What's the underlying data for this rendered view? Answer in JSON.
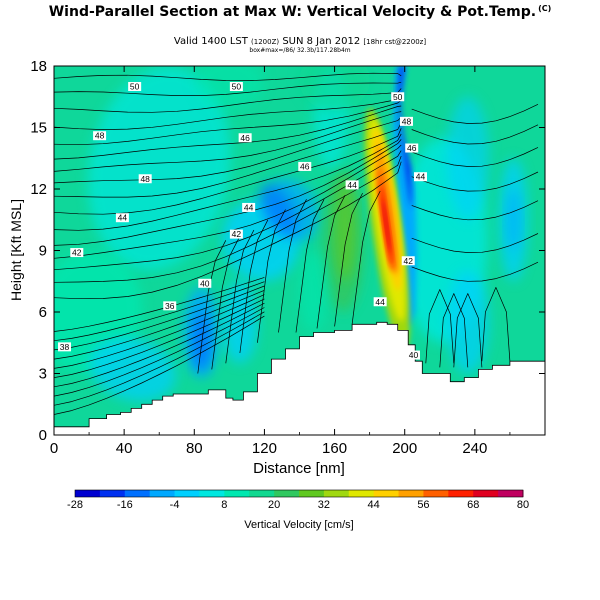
{
  "header": {
    "title": "Wind-Parallel Section at Max W: Vertical Velocity & Pot.Temp.",
    "copyright": "(C)",
    "valid_line": "Valid 1400 LST",
    "valid_small": "(1200Z)",
    "date_line": "SUN 8 Jan 2012",
    "model_small": "[18hr cst@2200z]",
    "sub_line": "box#max=/86/ 32.3b/117.28b4m"
  },
  "chart_data": {
    "type": "heatmap",
    "xlabel": "Distance [nm]",
    "ylabel": "Height [Kft MSL]",
    "xlim": [
      0,
      280
    ],
    "ylim": [
      0,
      18
    ],
    "xticks": [
      "0",
      "40",
      "80",
      "120",
      "160",
      "200",
      "240"
    ],
    "yticks": [
      "0",
      "3",
      "6",
      "9",
      "12",
      "15",
      "18"
    ],
    "colorbar": {
      "label": "Vertical Velocity [cm/s]",
      "ticks": [
        "-28",
        "-16",
        "-4",
        "8",
        "20",
        "32",
        "44",
        "56",
        "68",
        "80"
      ],
      "colors": [
        "#0000d0",
        "#0030f0",
        "#0070ff",
        "#00a8ff",
        "#00d0ff",
        "#00e8e0",
        "#00e8b0",
        "#10d890",
        "#30c860",
        "#60c820",
        "#a0d810",
        "#e0e800",
        "#ffd000",
        "#ffa000",
        "#ff6000",
        "#ff2000",
        "#e00020",
        "#c00060"
      ]
    },
    "contour_labels": [
      {
        "label": "50",
        "x": 46,
        "y": 17.0
      },
      {
        "label": "50",
        "x": 104,
        "y": 17.0
      },
      {
        "label": "48",
        "x": 26,
        "y": 14.6
      },
      {
        "label": "46",
        "x": 109,
        "y": 14.5
      },
      {
        "label": "48",
        "x": 52,
        "y": 12.5
      },
      {
        "label": "46",
        "x": 143,
        "y": 13.1
      },
      {
        "label": "44",
        "x": 170,
        "y": 12.2
      },
      {
        "label": "44",
        "x": 39,
        "y": 10.6
      },
      {
        "label": "44",
        "x": 111,
        "y": 11.1
      },
      {
        "label": "42",
        "x": 13,
        "y": 8.9
      },
      {
        "label": "42",
        "x": 104,
        "y": 9.8
      },
      {
        "label": "40",
        "x": 86,
        "y": 7.4
      },
      {
        "label": "36",
        "x": 66,
        "y": 6.3
      },
      {
        "label": "38",
        "x": 6,
        "y": 4.3
      },
      {
        "label": "50",
        "x": 196,
        "y": 16.5
      },
      {
        "label": "48",
        "x": 201,
        "y": 15.3
      },
      {
        "label": "46",
        "x": 204,
        "y": 14.0
      },
      {
        "label": "44",
        "x": 209,
        "y": 12.6
      },
      {
        "label": "42",
        "x": 202,
        "y": 8.5
      },
      {
        "label": "44",
        "x": 186,
        "y": 6.5
      },
      {
        "label": "40",
        "x": 205,
        "y": 3.9
      }
    ],
    "terrain_top_kft": [
      [
        0,
        0.4
      ],
      [
        20,
        0.8
      ],
      [
        30,
        1.0
      ],
      [
        38,
        1.1
      ],
      [
        44,
        1.3
      ],
      [
        50,
        1.5
      ],
      [
        56,
        1.7
      ],
      [
        62,
        1.9
      ],
      [
        68,
        2.0
      ],
      [
        76,
        2.0
      ],
      [
        88,
        2.2
      ],
      [
        98,
        1.8
      ],
      [
        102,
        1.7
      ],
      [
        108,
        2.1
      ],
      [
        116,
        3.0
      ],
      [
        124,
        3.7
      ],
      [
        132,
        4.2
      ],
      [
        140,
        4.8
      ],
      [
        148,
        5.0
      ],
      [
        160,
        5.1
      ],
      [
        170,
        5.4
      ],
      [
        178,
        5.4
      ],
      [
        184,
        5.5
      ],
      [
        190,
        5.4
      ],
      [
        196,
        5.1
      ],
      [
        202,
        4.4
      ],
      [
        206,
        3.6
      ],
      [
        210,
        3.0
      ],
      [
        220,
        3.0
      ],
      [
        226,
        2.6
      ],
      [
        234,
        2.8
      ],
      [
        242,
        3.2
      ],
      [
        250,
        3.4
      ],
      [
        260,
        3.6
      ],
      [
        280,
        3.6
      ]
    ],
    "velocity_regions_cm_s": [
      {
        "desc": "updraft core",
        "x_range": [
          182,
          196
        ],
        "z_range": [
          5,
          16
        ],
        "max": 80
      },
      {
        "desc": "downdraft band",
        "x_range": [
          190,
          212
        ],
        "z_range": [
          5,
          18
        ],
        "min": -28
      },
      {
        "desc": "weak updraft column",
        "x_range": [
          150,
          178
        ],
        "z_range": [
          5,
          13
        ],
        "max": 14
      },
      {
        "desc": "weak downdraft",
        "x_range": [
          74,
          94
        ],
        "z_range": [
          3,
          7
        ],
        "min": -10
      }
    ]
  }
}
